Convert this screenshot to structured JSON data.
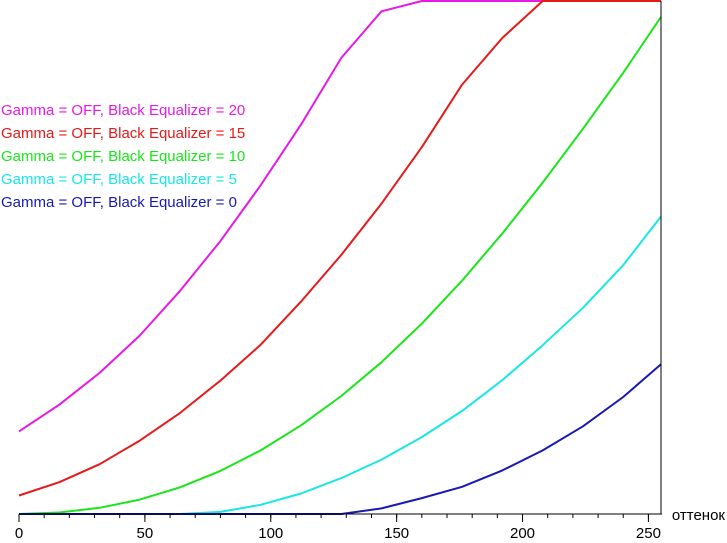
{
  "chart_data": {
    "type": "line",
    "title": "",
    "xlabel": "оттенок",
    "ylabel": "",
    "xlim": [
      0,
      255
    ],
    "ylim": [
      0,
      100
    ],
    "x_ticks": [
      "0",
      "50",
      "100",
      "150",
      "200",
      "250"
    ],
    "x_tick_values": [
      0,
      50,
      100,
      150,
      200,
      250
    ],
    "grid": false,
    "legend_position": "left",
    "axis_color": "#000000",
    "series": [
      {
        "name": "Gamma = OFF, Black Equalizer = 20",
        "color": "#e619e6",
        "x": [
          0,
          16,
          32,
          48,
          64,
          80,
          96,
          112,
          128,
          144,
          160,
          176,
          192,
          208,
          224,
          240,
          255
        ],
        "y": [
          16.1,
          21.3,
          27.5,
          34.8,
          43.5,
          53.2,
          64.1,
          75.9,
          88.9,
          98.0,
          100,
          100,
          100,
          100,
          100,
          100,
          100
        ]
      },
      {
        "name": "Gamma = OFF, Black Equalizer = 15",
        "color": "#e61919",
        "x": [
          0,
          16,
          32,
          48,
          64,
          80,
          96,
          112,
          128,
          144,
          160,
          176,
          192,
          208,
          224,
          240,
          255
        ],
        "y": [
          3.6,
          6.2,
          9.7,
          14.3,
          19.7,
          26.0,
          33.0,
          41.4,
          50.5,
          60.5,
          71.5,
          83.7,
          92.8,
          100,
          100,
          100,
          100
        ]
      },
      {
        "name": "Gamma = OFF, Black Equalizer = 10",
        "color": "#19e619",
        "x": [
          0,
          16,
          32,
          48,
          64,
          80,
          96,
          112,
          128,
          144,
          160,
          176,
          192,
          208,
          224,
          240,
          255
        ],
        "y": [
          0,
          0.3,
          1.2,
          2.8,
          5.2,
          8.4,
          12.4,
          17.3,
          23.0,
          29.6,
          37.1,
          45.5,
          54.7,
          64.6,
          75.1,
          86.0,
          96.9
        ]
      },
      {
        "name": "Gamma = OFF, Black Equalizer = 5",
        "color": "#19e6e6",
        "x": [
          0,
          16,
          32,
          48,
          64,
          80,
          96,
          112,
          128,
          144,
          160,
          176,
          192,
          208,
          224,
          240,
          255
        ],
        "y": [
          0,
          0,
          0,
          0,
          0,
          0.4,
          1.8,
          4.0,
          7.0,
          10.6,
          15.0,
          20.1,
          26.1,
          32.9,
          40.2,
          48.5,
          58.0
        ]
      },
      {
        "name": "Gamma = OFF, Black Equalizer = 0",
        "color": "#1919b3",
        "x": [
          0,
          16,
          32,
          48,
          64,
          80,
          96,
          112,
          128,
          144,
          160,
          176,
          192,
          208,
          224,
          240,
          255
        ],
        "y": [
          0,
          0,
          0,
          0,
          0,
          0,
          0,
          0,
          0,
          1.1,
          3.1,
          5.3,
          8.5,
          12.4,
          17.1,
          22.8,
          29.2
        ]
      }
    ]
  }
}
